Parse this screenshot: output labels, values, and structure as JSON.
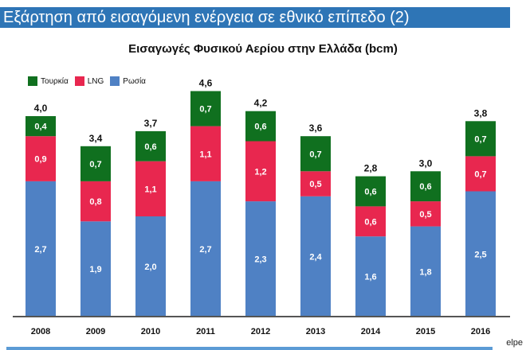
{
  "header": {
    "title": "Εξάρτηση από εισαγόμενη ενέργεια σε εθνικό επίπεδο (2)"
  },
  "footer": {
    "source": "elpe"
  },
  "chart_data": {
    "type": "bar",
    "stacked": true,
    "title": "Εισαγωγές Φυσικού Αερίου στην Ελλάδα (bcm)",
    "categories": [
      "2008",
      "2009",
      "2010",
      "2011",
      "2012",
      "2013",
      "2014",
      "2015",
      "2016"
    ],
    "series": [
      {
        "name": "Ρωσία",
        "color": "#4f81c4",
        "values": [
          "2,7",
          "1,9",
          "2,0",
          "2,7",
          "2,3",
          "2,4",
          "1,6",
          "1,8",
          "2,5"
        ]
      },
      {
        "name": "LNG",
        "color": "#e8274f",
        "values": [
          "0,9",
          "0,8",
          "1,1",
          "1,1",
          "1,2",
          "0,5",
          "0,6",
          "0,5",
          "0,7"
        ]
      },
      {
        "name": "Τουρκία",
        "color": "#10701f",
        "values": [
          "0,4",
          "0,7",
          "0,6",
          "0,7",
          "0,6",
          "0,7",
          "0,6",
          "0,6",
          "0,7"
        ]
      }
    ],
    "totals": [
      "4,0",
      "3,4",
      "3,7",
      "4,6",
      "4,2",
      "3,6",
      "2,8",
      "3,0",
      "3,8"
    ],
    "legend_order": [
      "Τουρκία",
      "LNG",
      "Ρωσία"
    ],
    "legend_position": "top-left",
    "ylim": [
      0,
      4.8
    ],
    "grid": false
  }
}
